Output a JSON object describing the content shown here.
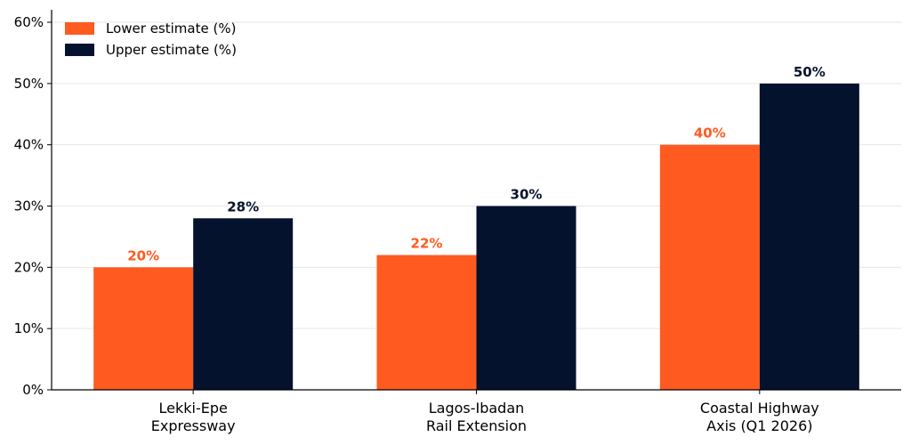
{
  "chart_data": {
    "type": "bar",
    "categories": [
      [
        "Lekki-Epe",
        "Expressway"
      ],
      [
        "Lagos-Ibadan",
        "Rail Extension"
      ],
      [
        "Coastal Highway",
        "Axis (Q1 2026)"
      ]
    ],
    "series": [
      {
        "name": "Lower estimate (%)",
        "values": [
          20,
          22,
          40
        ],
        "labels": [
          "20%",
          "22%",
          "40%"
        ],
        "color": "#ff5a1f"
      },
      {
        "name": "Upper estimate (%)",
        "values": [
          28,
          30,
          50
        ],
        "labels": [
          "28%",
          "30%",
          "50%"
        ],
        "color": "#04122e"
      }
    ],
    "ylim": [
      0,
      60
    ],
    "yticks": [
      0,
      10,
      20,
      30,
      40,
      50,
      60
    ],
    "ytick_labels": [
      "0%",
      "10%",
      "20%",
      "30%",
      "40%",
      "50%",
      "60%"
    ],
    "grid": true,
    "legend": "top-left",
    "title": "",
    "xlabel": "",
    "ylabel": ""
  }
}
